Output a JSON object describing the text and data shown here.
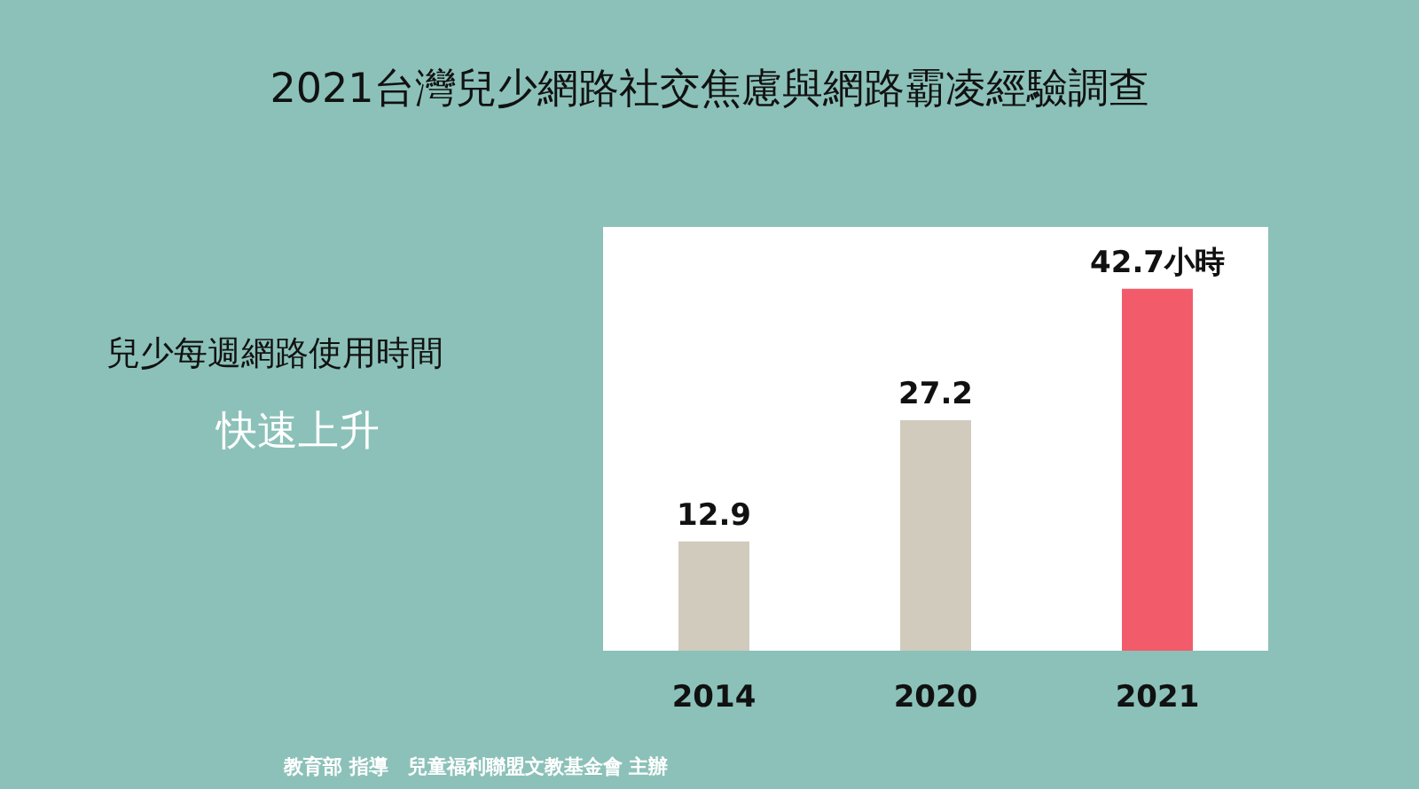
{
  "chart_data": {
    "type": "bar",
    "title": "2021台灣兒少網路社交焦慮與網路霸凌經驗調查",
    "categories": [
      "2014",
      "2020",
      "2021"
    ],
    "values": [
      12.9,
      27.2,
      42.7
    ],
    "colors": [
      "#d0cbbd",
      "#d0cbbd",
      "#f25c6a"
    ],
    "value_labels": [
      "12.9",
      "27.2",
      "42.7小時"
    ],
    "annotations": [
      "兒少每週網路使用時間",
      "快速上升",
      "教育部 指導　兒童福利聯盟文教基金會 主辦"
    ],
    "grid": false
  }
}
